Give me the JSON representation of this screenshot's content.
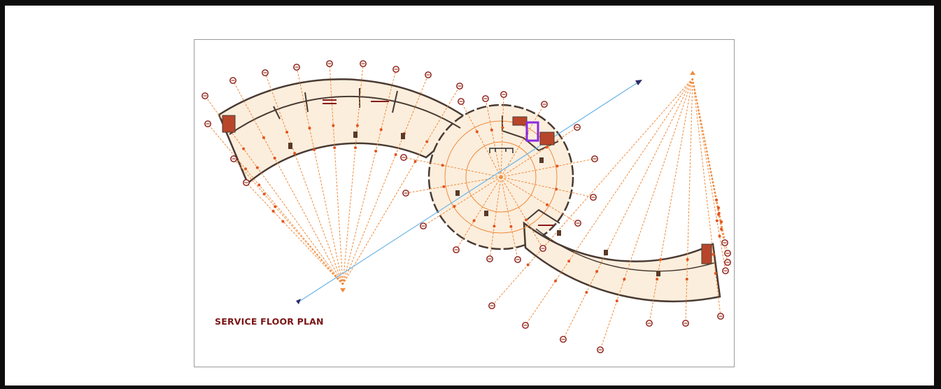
{
  "drawing": {
    "title": "SERVICE FLOOR PLAN",
    "footer_center": "",
    "footer_right": ""
  },
  "colors": {
    "grid_line": "#f08a3a",
    "floor_fill": "#fbeedd",
    "wall": "#4a3a32",
    "marker": "#8a1a1a",
    "section_line": "#6ab4e6",
    "title": "#7a1414",
    "accent_purple": "#8a2be2"
  },
  "icons": [
    "grid-marker-icon",
    "column-icon",
    "section-arrow-icon",
    "stair-icon",
    "lift-icon"
  ]
}
